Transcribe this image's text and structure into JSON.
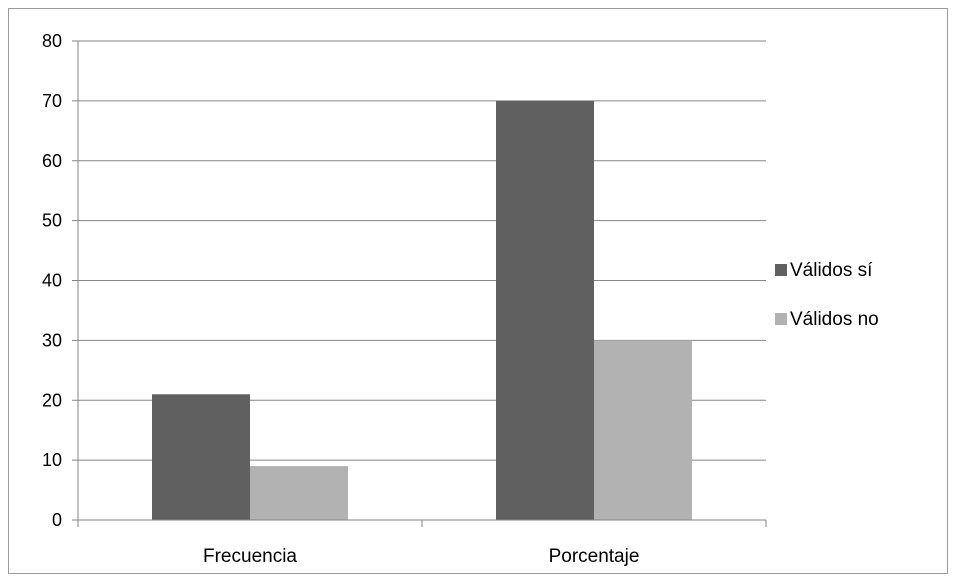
{
  "chart_data": {
    "type": "bar",
    "categories": [
      "Frecuencia",
      "Porcentaje"
    ],
    "series": [
      {
        "name": "Válidos sí",
        "values": [
          21,
          70
        ],
        "color": "#606060"
      },
      {
        "name": "Válidos no",
        "values": [
          9,
          30
        ],
        "color": "#b2b2b2"
      }
    ],
    "ylim": [
      0,
      80
    ],
    "yticks": [
      0,
      10,
      20,
      30,
      40,
      50,
      60,
      70,
      80
    ],
    "grid": true,
    "legend": "right"
  }
}
